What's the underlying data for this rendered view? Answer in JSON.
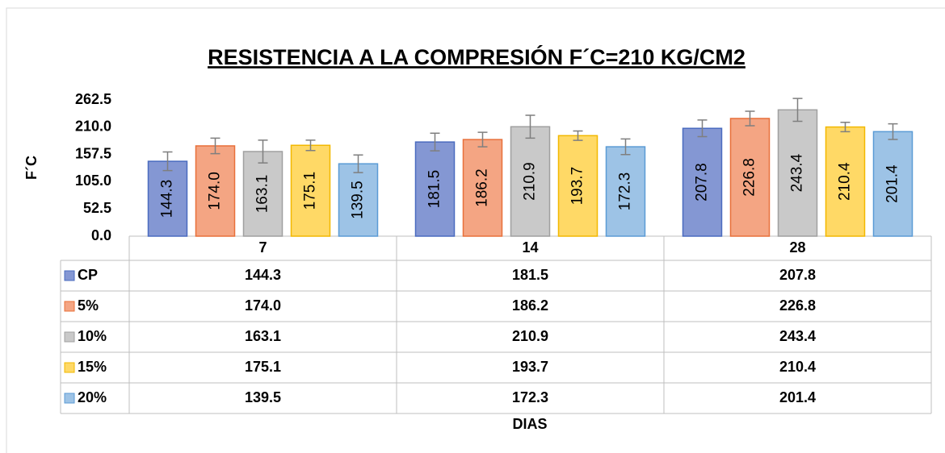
{
  "chart_data": {
    "type": "bar",
    "title": "RESISTENCIA A LA COMPRESIÓN F´C=210 KG/CM2",
    "y_label": "F´C",
    "x_label": "DIAS",
    "categories": [
      "7",
      "14",
      "28"
    ],
    "series": [
      {
        "name": "CP",
        "color": "#8497d3",
        "stroke": "#4a6bbf",
        "values": [
          144.3,
          181.5,
          207.8
        ],
        "value_labels": [
          "144.3",
          "181.5",
          "207.8"
        ],
        "errors": [
          18,
          17,
          16
        ]
      },
      {
        "name": "5%",
        "color": "#f4a583",
        "stroke": "#e8703a",
        "values": [
          174.0,
          186.2,
          226.8
        ],
        "value_labels": [
          "174.0",
          "186.2",
          "226.8"
        ],
        "errors": [
          15,
          14,
          14
        ]
      },
      {
        "name": "10%",
        "color": "#c9c9c9",
        "stroke": "#a0a0a0",
        "values": [
          163.1,
          210.9,
          243.4
        ],
        "value_labels": [
          "163.1",
          "210.9",
          "243.4"
        ],
        "errors": [
          22,
          22,
          22
        ]
      },
      {
        "name": "15%",
        "color": "#ffd966",
        "stroke": "#f2b800",
        "values": [
          175.1,
          193.7,
          210.4
        ],
        "value_labels": [
          "175.1",
          "193.7",
          "210.4"
        ],
        "errors": [
          10,
          9,
          9
        ]
      },
      {
        "name": "20%",
        "color": "#9dc3e6",
        "stroke": "#5b9bd5",
        "values": [
          139.5,
          172.3,
          201.4
        ],
        "value_labels": [
          "139.5",
          "172.3",
          "201.4"
        ],
        "errors": [
          17,
          15,
          15
        ]
      }
    ],
    "ylim": [
      0,
      262.5
    ],
    "yticks": [
      {
        "value": 0,
        "label": "0.0"
      },
      52.5,
      {
        "value": 105,
        "label": "105.0"
      },
      157.5,
      {
        "value": 210,
        "label": "210.0"
      },
      262.5
    ],
    "grid": false
  }
}
